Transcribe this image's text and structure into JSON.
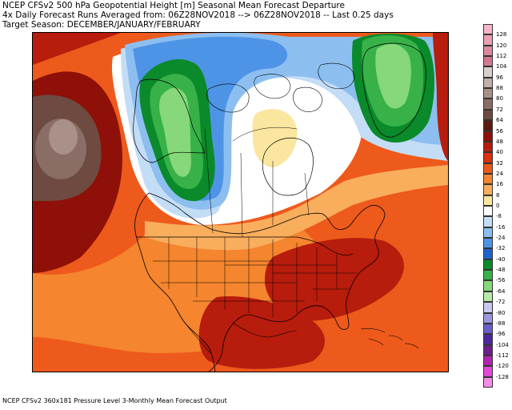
{
  "header": {
    "line1": "NCEP CFSv2 500 hPa Geopotential Height [m] Seasonal Mean Forecast Departure",
    "line2": "4x Daily Forecast Runs Averaged from: 06Z28NOV2018 --> 06Z28NOV2018 -- Last 0.25 days",
    "line3": "Target Season: DECEMBER/JANUARY/FEBRUARY"
  },
  "footer": {
    "text": "NCEP CFSv2 360x181 Pressure Level 3-Monthly Mean Forecast Output"
  },
  "colorbar": {
    "levels": [
      {
        "label": "128",
        "color": "#f4b6c8"
      },
      {
        "label": "120",
        "color": "#e8a0b2"
      },
      {
        "label": "112",
        "color": "#dd8aa0"
      },
      {
        "label": "104",
        "color": "#d07890"
      },
      {
        "label": "96",
        "color": "#d8cfcc"
      },
      {
        "label": "88",
        "color": "#c2b0aa"
      },
      {
        "label": "80",
        "color": "#a9918a"
      },
      {
        "label": "72",
        "color": "#8a6e66"
      },
      {
        "label": "64",
        "color": "#6e4a40"
      },
      {
        "label": "56",
        "color": "#5a1a12"
      },
      {
        "label": "48",
        "color": "#8e1008"
      },
      {
        "label": "40",
        "color": "#b81c0c"
      },
      {
        "label": "32",
        "color": "#d83010"
      },
      {
        "label": "24",
        "color": "#ee5a1c"
      },
      {
        "label": "16",
        "color": "#f5852e"
      },
      {
        "label": "8",
        "color": "#f8ae5c"
      },
      {
        "label": "0",
        "color": "#fbe6a0"
      },
      {
        "label": "-8",
        "color": "#ffffff"
      },
      {
        "label": "-16",
        "color": "#c4ddf6"
      },
      {
        "label": "-24",
        "color": "#8cbff0"
      },
      {
        "label": "-32",
        "color": "#4e94e6"
      },
      {
        "label": "-40",
        "color": "#1e62cc"
      },
      {
        "label": "-48",
        "color": "#0a8a2a"
      },
      {
        "label": "-56",
        "color": "#38b248"
      },
      {
        "label": "-64",
        "color": "#86d87a"
      },
      {
        "label": "-72",
        "color": "#b8e8a8"
      },
      {
        "label": "-80",
        "color": "#c8c8ee"
      },
      {
        "label": "-88",
        "color": "#9a96dc"
      },
      {
        "label": "-96",
        "color": "#6a5ec8"
      },
      {
        "label": "-104",
        "color": "#4a2a9a"
      },
      {
        "label": "-112",
        "color": "#6c1e8a"
      },
      {
        "label": "-120",
        "color": "#b024b0"
      },
      {
        "label": "-128",
        "color": "#e048d8"
      },
      {
        "label": "",
        "color": "#f48ce8"
      }
    ]
  },
  "map": {
    "colors": {
      "background": "#ee5a1c",
      "dark_red": "#b81c0c",
      "deep_red": "#8e1008",
      "orange": "#f5852e",
      "light_orange": "#f8ae5c",
      "pale": "#fbe6a0",
      "white": "#ffffff",
      "lightblue": "#c4ddf6",
      "blue1": "#8cbff0",
      "blue2": "#4e94e6",
      "blue3": "#1e62cc",
      "green_dark": "#0a8a2a",
      "green_mid": "#38b248",
      "green_light": "#86d87a",
      "green_pale": "#b8e8a8",
      "brown": "#6e4a40",
      "brown_mid": "#8a6e66",
      "brown_light": "#a9918a",
      "outline": "#000000"
    }
  }
}
